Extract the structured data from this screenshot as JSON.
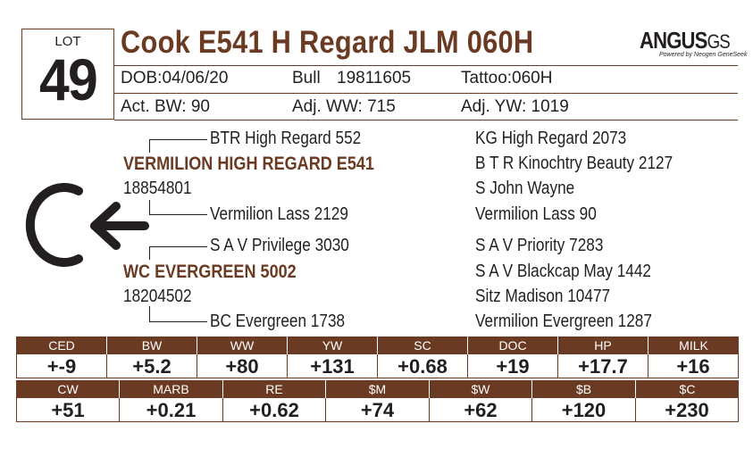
{
  "lot": {
    "label": "LOT",
    "number": "49"
  },
  "animal": {
    "name": "Cook E541 H Regard JLM 060H",
    "dob": "DOB:04/06/20",
    "sex": "Bull",
    "reg": "19811605",
    "tattoo": "Tattoo:060H",
    "act_bw": "Act. BW: 90",
    "adj_ww": "Adj. WW: 715",
    "adj_yw": "Adj. YW: 1019"
  },
  "logo": {
    "main": "ANGUS",
    "suffix": "GS",
    "sub": "Powered by Neogen GeneSeek"
  },
  "marker": {
    "letter": "C",
    "arrow": "arrow-left-icon"
  },
  "pedigree": {
    "sire": {
      "name": "VERMILION HIGH REGARD E541",
      "reg": "18854801"
    },
    "sire_sire": "BTR High Regard 552",
    "sire_dam": "Vermilion Lass 2129",
    "dam": {
      "name": "WC EVERGREEN 5002",
      "reg": "18204502"
    },
    "dam_sire": "S A V Privilege 3030",
    "dam_dam": "BC Evergreen 1738",
    "ancestors": [
      "KG High Regard 2073",
      "B T R Kinochtry Beauty 2127",
      "S John Wayne",
      "Vermilion Lass 90",
      "S A V Priority 7283",
      "S A V Blackcap May 1442",
      "Sitz Madison 10477",
      "Vermilion Evergreen 1287"
    ]
  },
  "epd_row1": [
    {
      "label": "CED",
      "value": "+-9"
    },
    {
      "label": "BW",
      "value": "+5.2"
    },
    {
      "label": "WW",
      "value": "+80"
    },
    {
      "label": "YW",
      "value": "+131"
    },
    {
      "label": "SC",
      "value": "+0.68"
    },
    {
      "label": "DOC",
      "value": "+19"
    },
    {
      "label": "HP",
      "value": "+17.7"
    },
    {
      "label": "MILK",
      "value": "+16"
    }
  ],
  "epd_row2": [
    {
      "label": "CW",
      "value": "+51"
    },
    {
      "label": "MARB",
      "value": "+0.21"
    },
    {
      "label": "RE",
      "value": "+0.62"
    },
    {
      "label": "$M",
      "value": "+74"
    },
    {
      "label": "$W",
      "value": "+62"
    },
    {
      "label": "$B",
      "value": "+120"
    },
    {
      "label": "$C",
      "value": "+230"
    }
  ],
  "colors": {
    "brown": "#6b3a22",
    "text": "#231f20"
  }
}
